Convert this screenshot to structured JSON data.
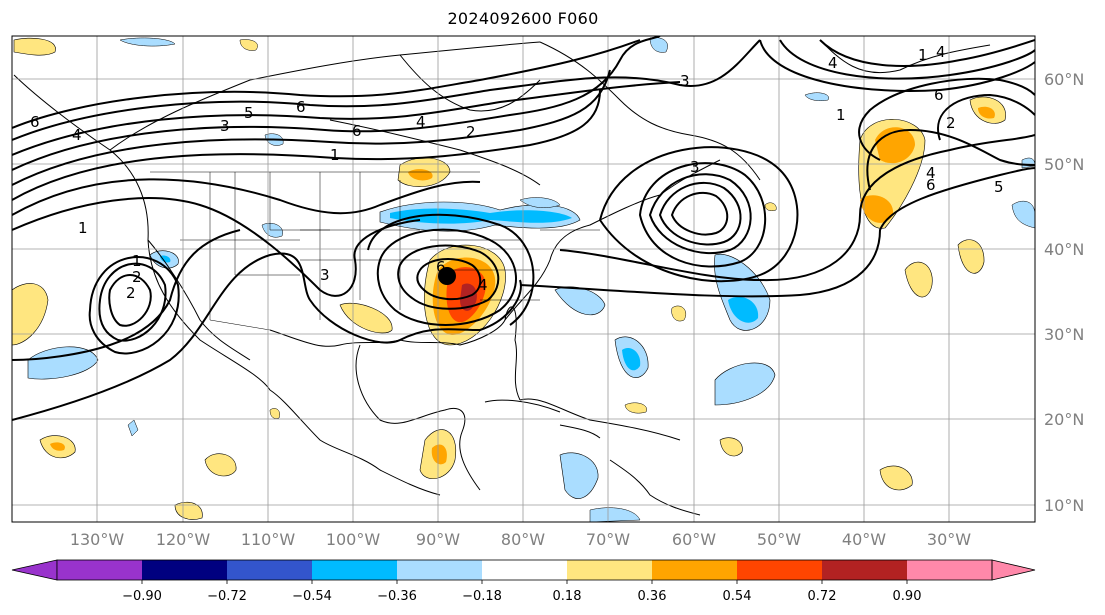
{
  "title": "2024092600 F060",
  "map": {
    "projection": "lat-lon",
    "extent": {
      "lon_min": -140,
      "lon_max": -17,
      "lat_min": 8,
      "lat_max": 65
    },
    "gridlines": true,
    "lon_ticks": [
      "130°W",
      "120°W",
      "110°W",
      "100°W",
      "90°W",
      "80°W",
      "70°W",
      "60°W",
      "50°W",
      "40°W",
      "30°W"
    ],
    "lat_ticks": [
      "60°N",
      "50°N",
      "40°N",
      "30°N",
      "20°N",
      "10°N"
    ],
    "contour_labels": [
      "6",
      "3",
      "5",
      "6",
      "4",
      "2",
      "1",
      "1",
      "6",
      "4",
      "2",
      "3",
      "1",
      "2",
      "3",
      "4",
      "1",
      "6",
      "2",
      "4",
      "6",
      "5",
      "3",
      "1",
      "4",
      "4",
      "6"
    ],
    "marker": "storm-center-dot"
  },
  "colorbar": {
    "ticks": [
      "−0.90",
      "−0.72",
      "−0.54",
      "−0.36",
      "−0.18",
      "0.18",
      "0.36",
      "0.54",
      "0.72",
      "0.90"
    ],
    "colors": [
      "#9933cc",
      "#000080",
      "#3355cc",
      "#00bbff",
      "#aaddff",
      "#ffffff",
      "#ffe680",
      "#ffa500",
      "#ff4500",
      "#b22222",
      "#ff88aa"
    ]
  }
}
